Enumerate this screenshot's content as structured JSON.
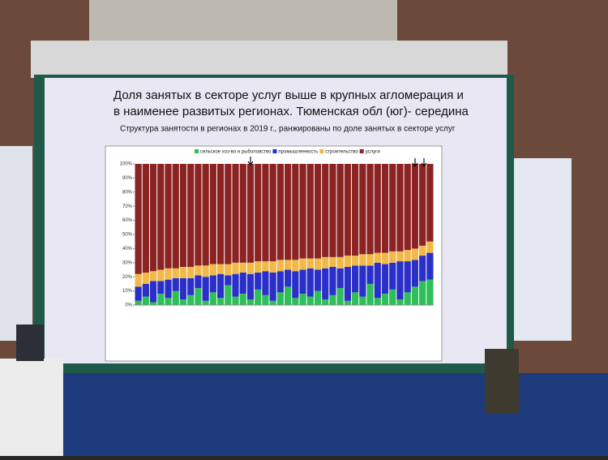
{
  "chart_data": {
    "type": "bar",
    "stacked": true,
    "title": "Доля занятых в секторе услуг выше в крупных агломерация и в наименее развитых регионах. Тюменская обл (юг)- середина",
    "subtitle": "Структура занятости в регионах в 2019 г., ранжированы по доле занятых в секторе услуг",
    "categories": [
      null,
      null,
      null,
      null,
      null,
      null,
      null,
      null,
      null,
      null,
      null,
      null,
      null,
      null,
      null,
      null,
      null,
      null,
      null,
      null,
      null,
      null,
      null,
      null,
      null,
      null,
      null,
      null,
      null,
      null,
      null,
      null,
      null,
      null,
      null,
      null,
      null,
      null,
      null,
      null
    ],
    "series": [
      {
        "name": "сельское хоз-во и рыболовство",
        "color": "#2fbf5a",
        "values": [
          3,
          6,
          2,
          8,
          5,
          10,
          4,
          7,
          12,
          3,
          9,
          5,
          14,
          6,
          8,
          4,
          11,
          7,
          3,
          9,
          13,
          5,
          8,
          6,
          10,
          4,
          7,
          12,
          3,
          9,
          6,
          15,
          5,
          8,
          11,
          4,
          9,
          13,
          17,
          18
        ]
      },
      {
        "name": "промышленность",
        "color": "#2a2fc8",
        "values": [
          10,
          9,
          15,
          9,
          13,
          9,
          15,
          12,
          9,
          17,
          12,
          17,
          7,
          16,
          15,
          18,
          12,
          17,
          20,
          15,
          12,
          19,
          17,
          20,
          15,
          22,
          20,
          14,
          24,
          19,
          22,
          13,
          25,
          21,
          19,
          27,
          22,
          19,
          18,
          19
        ]
      },
      {
        "name": "строительство",
        "color": "#f0b94a",
        "values": [
          9,
          8,
          7,
          8,
          8,
          7,
          8,
          8,
          7,
          8,
          8,
          7,
          8,
          8,
          7,
          8,
          8,
          7,
          8,
          8,
          7,
          8,
          8,
          7,
          8,
          8,
          7,
          8,
          8,
          7,
          8,
          8,
          7,
          8,
          8,
          7,
          8,
          8,
          7,
          8
        ]
      },
      {
        "name": "услуги",
        "color": "#8b2323",
        "values": [
          78,
          77,
          76,
          75,
          74,
          74,
          73,
          73,
          72,
          72,
          71,
          71,
          71,
          70,
          70,
          70,
          69,
          69,
          69,
          68,
          68,
          68,
          67,
          67,
          67,
          66,
          66,
          66,
          65,
          65,
          64,
          64,
          63,
          63,
          62,
          62,
          61,
          60,
          58,
          55
        ]
      }
    ],
    "ylim": [
      0,
      100
    ],
    "yticks": [
      {
        "value": 0,
        "label": "0%"
      },
      {
        "value": 10,
        "label": "10%"
      },
      {
        "value": 20,
        "label": "20%"
      },
      {
        "value": 30,
        "label": "30%"
      },
      {
        "value": 40,
        "label": "40%"
      },
      {
        "value": 50,
        "label": "50%"
      },
      {
        "value": 60,
        "label": "60%"
      },
      {
        "value": 70,
        "label": "70%"
      },
      {
        "value": 80,
        "label": "80%"
      },
      {
        "value": 90,
        "label": "90%"
      },
      {
        "value": 100,
        "label": "100%"
      }
    ],
    "legend": "top"
  }
}
